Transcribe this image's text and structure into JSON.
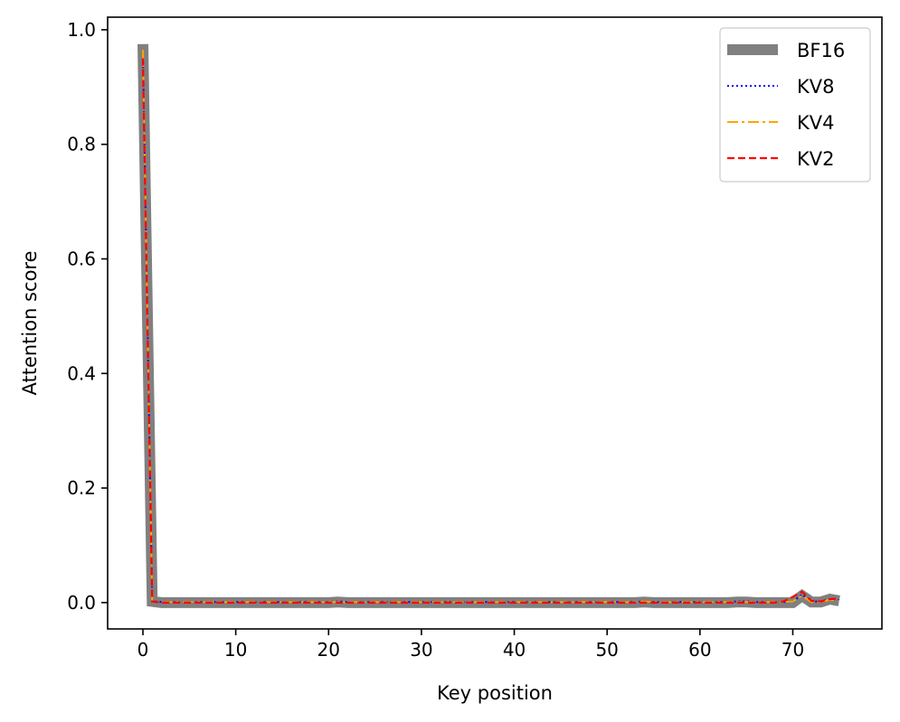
{
  "chart_data": {
    "type": "line",
    "title": "",
    "xlabel": "Key position",
    "ylabel": "Attention score",
    "xlim": [
      -3.8,
      79.6
    ],
    "ylim": [
      -0.046,
      1.022
    ],
    "xticks": [
      0,
      10,
      20,
      30,
      40,
      50,
      60,
      70
    ],
    "yticks": [
      0.0,
      0.2,
      0.4,
      0.6,
      0.8,
      1.0
    ],
    "xtick_labels": [
      "0",
      "10",
      "20",
      "30",
      "40",
      "50",
      "60",
      "70"
    ],
    "ytick_labels": [
      "0.0",
      "0.2",
      "0.4",
      "0.6",
      "0.8",
      "1.0"
    ],
    "grid": false,
    "legend_position": "top-right",
    "x": [
      0,
      1,
      2,
      3,
      4,
      5,
      6,
      7,
      8,
      9,
      10,
      11,
      12,
      13,
      14,
      15,
      16,
      17,
      18,
      19,
      20,
      21,
      22,
      23,
      24,
      25,
      26,
      27,
      28,
      29,
      30,
      31,
      32,
      33,
      34,
      35,
      36,
      37,
      38,
      39,
      40,
      41,
      42,
      43,
      44,
      45,
      46,
      47,
      48,
      49,
      50,
      51,
      52,
      53,
      54,
      55,
      56,
      57,
      58,
      59,
      60,
      61,
      62,
      63,
      64,
      65,
      66,
      67,
      68,
      69,
      70,
      71,
      72,
      73,
      74,
      75
    ],
    "series": [
      {
        "name": "BF16",
        "color": "#808080",
        "style": "solid",
        "values": [
          0.975,
          0.002,
          0.0,
          0.0,
          0.0,
          0.0,
          0.0,
          0.0,
          0.0,
          0.0,
          0.0,
          0.0,
          0.0,
          0.0,
          0.0,
          0.0,
          0.0,
          0.0,
          0.0,
          0.0,
          0.0,
          0.001,
          0.0,
          0.0,
          0.0,
          0.0,
          0.0,
          0.0,
          0.0,
          0.0,
          0.0,
          0.0,
          0.0,
          0.0,
          0.0,
          0.0,
          0.0,
          0.0,
          0.0,
          0.0,
          0.0,
          0.0,
          0.0,
          0.0,
          0.0,
          0.0,
          0.0,
          0.0,
          0.0,
          0.0,
          0.0,
          0.0,
          0.0,
          0.0,
          0.001,
          0.0,
          0.0,
          0.0,
          0.0,
          0.0,
          0.0,
          0.0,
          0.0,
          0.0,
          0.001,
          0.001,
          0.0,
          0.0,
          0.0,
          0.0,
          0.0,
          0.012,
          0.001,
          0.001,
          0.006,
          0.003
        ]
      },
      {
        "name": "KV8",
        "color": "#0000ff",
        "style": "dotted",
        "values": [
          0.96,
          0.003,
          0.001,
          0.001,
          0.001,
          0.001,
          0.001,
          0.001,
          0.001,
          0.001,
          0.001,
          0.001,
          0.001,
          0.001,
          0.001,
          0.001,
          0.001,
          0.001,
          0.001,
          0.001,
          0.001,
          0.002,
          0.001,
          0.001,
          0.001,
          0.001,
          0.001,
          0.001,
          0.001,
          0.001,
          0.001,
          0.001,
          0.001,
          0.001,
          0.001,
          0.001,
          0.001,
          0.001,
          0.001,
          0.001,
          0.001,
          0.001,
          0.001,
          0.001,
          0.001,
          0.001,
          0.001,
          0.001,
          0.001,
          0.001,
          0.001,
          0.001,
          0.001,
          0.001,
          0.002,
          0.001,
          0.001,
          0.001,
          0.001,
          0.001,
          0.001,
          0.001,
          0.001,
          0.001,
          0.002,
          0.002,
          0.001,
          0.001,
          0.001,
          0.001,
          0.002,
          0.014,
          0.002,
          0.002,
          0.006,
          0.004
        ]
      },
      {
        "name": "KV4",
        "color": "#ffa500",
        "style": "dashdot",
        "values": [
          0.965,
          0.002,
          0.001,
          0.001,
          0.001,
          0.001,
          0.001,
          0.001,
          0.001,
          0.001,
          0.001,
          0.001,
          0.001,
          0.001,
          0.001,
          0.001,
          0.001,
          0.001,
          0.001,
          0.001,
          0.001,
          0.001,
          0.001,
          0.001,
          0.001,
          0.001,
          0.001,
          0.001,
          0.001,
          0.001,
          0.001,
          0.001,
          0.001,
          0.001,
          0.001,
          0.001,
          0.001,
          0.001,
          0.001,
          0.001,
          0.001,
          0.001,
          0.001,
          0.001,
          0.001,
          0.001,
          0.001,
          0.001,
          0.001,
          0.001,
          0.001,
          0.001,
          0.001,
          0.001,
          0.002,
          0.001,
          0.001,
          0.001,
          0.001,
          0.001,
          0.001,
          0.001,
          0.001,
          0.001,
          0.001,
          0.001,
          0.001,
          0.001,
          0.001,
          0.001,
          0.002,
          0.012,
          0.001,
          0.001,
          0.005,
          0.003
        ]
      },
      {
        "name": "KV2",
        "color": "#ff0000",
        "style": "dashed",
        "values": [
          0.95,
          0.002,
          0.0,
          0.0,
          0.0,
          0.0,
          0.0,
          0.0,
          0.0,
          0.0,
          0.0,
          0.0,
          0.0,
          0.0,
          0.0,
          0.0,
          0.0,
          0.0,
          0.0,
          0.0,
          0.0,
          0.0,
          0.0,
          0.0,
          0.0,
          0.0,
          0.0,
          0.0,
          0.0,
          0.0,
          0.0,
          0.0,
          0.0,
          0.0,
          0.0,
          0.0,
          0.0,
          0.0,
          0.0,
          0.0,
          0.0,
          0.0,
          0.0,
          0.0,
          0.0,
          0.0,
          0.0,
          0.0,
          0.0,
          0.0,
          0.0,
          0.0,
          0.0,
          0.0,
          0.0,
          0.0,
          0.0,
          0.0,
          0.0,
          0.0,
          0.0,
          0.0,
          0.0,
          0.0,
          0.0,
          0.0,
          0.0,
          0.0,
          0.0,
          0.002,
          0.01,
          0.019,
          0.003,
          0.002,
          0.006,
          0.007
        ]
      }
    ]
  }
}
